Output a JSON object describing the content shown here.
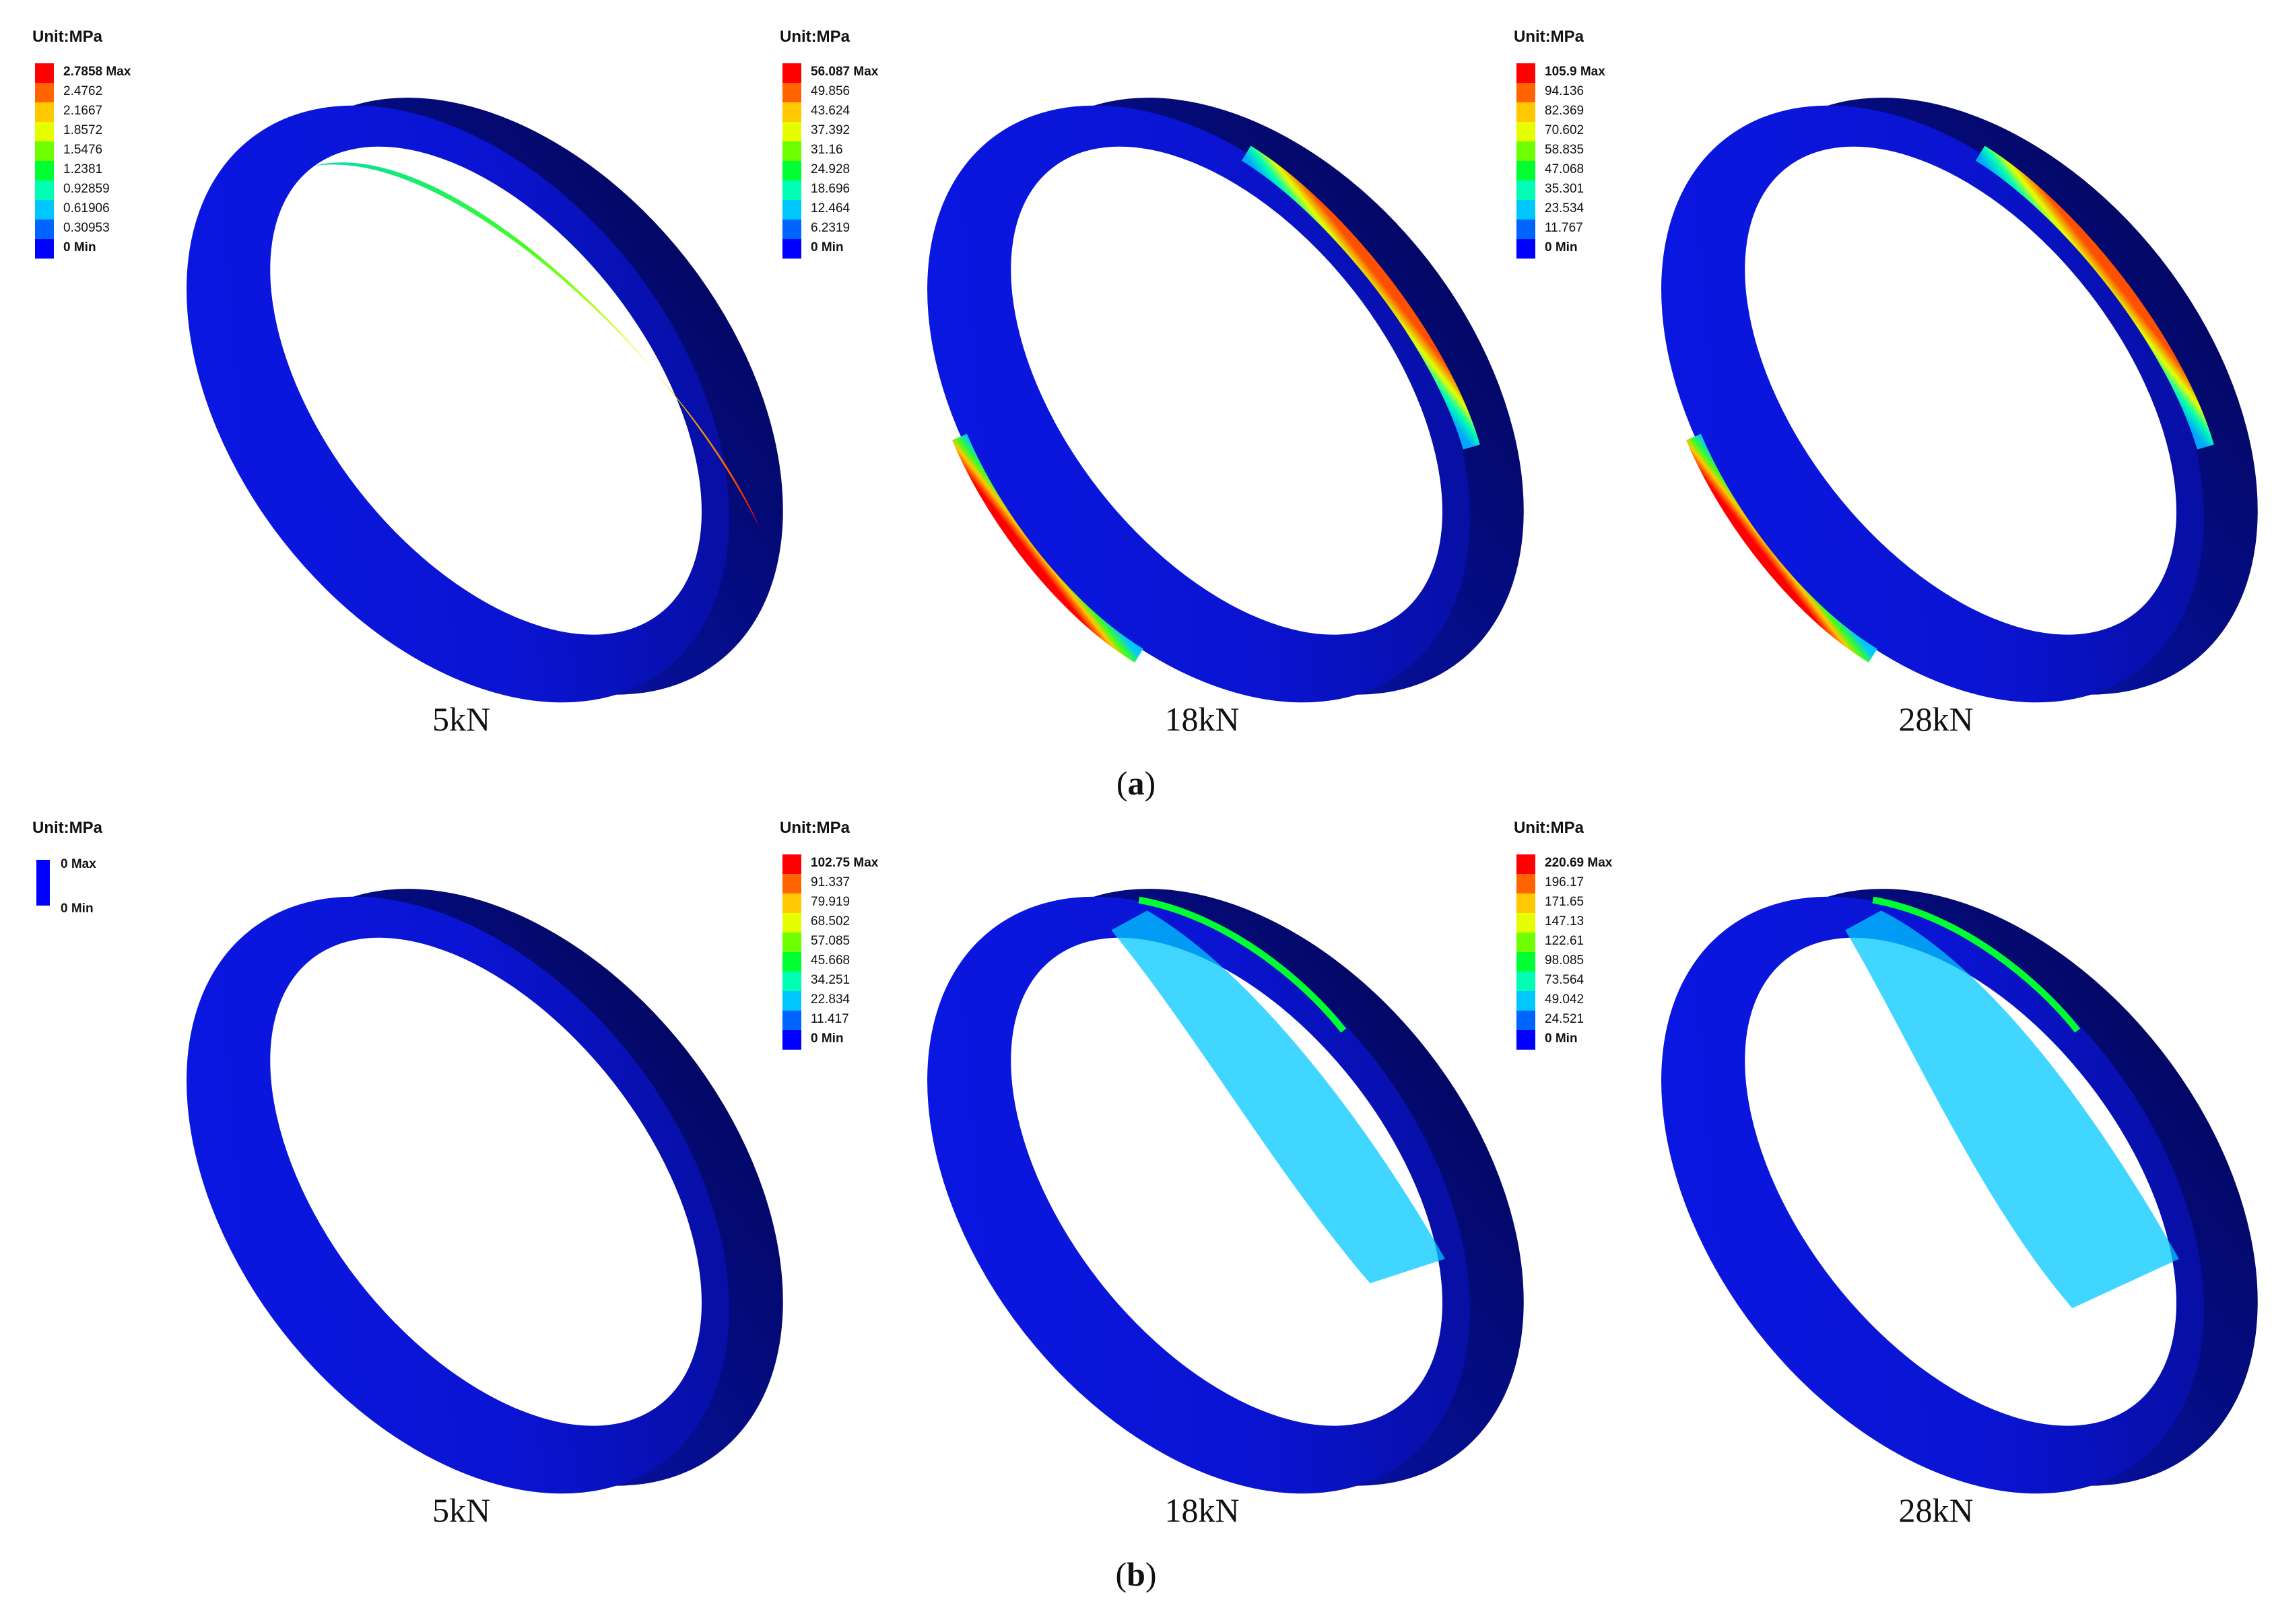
{
  "colors": {
    "ring": "#0a14dc",
    "ring_dark": "#04097a",
    "contour": [
      "#0000ff",
      "#0064ff",
      "#00c8ff",
      "#00ffb4",
      "#00ff32",
      "#6eff00",
      "#e6ff00",
      "#ffc800",
      "#ff6400",
      "#ff0000"
    ]
  },
  "panels": [
    {
      "id": "a",
      "caption_letter": "a",
      "cases": [
        {
          "load": "5kN",
          "unit": "Unit:MPa",
          "legend": [
            "2.7858 Max",
            "2.4762",
            "2.1667",
            "1.8572",
            "1.5476",
            "1.2381",
            "0.92859",
            "0.61906",
            "0.30953",
            "0 Min"
          ],
          "max_value": 2.7858
        },
        {
          "load": "18kN",
          "unit": "Unit:MPa",
          "legend": [
            "56.087 Max",
            "49.856",
            "43.624",
            "37.392",
            "31.16",
            "24.928",
            "18.696",
            "12.464",
            "6.2319",
            "0 Min"
          ],
          "max_value": 56.087
        },
        {
          "load": "28kN",
          "unit": "Unit:MPa",
          "legend": [
            "105.9 Max",
            "94.136",
            "82.369",
            "70.602",
            "58.835",
            "47.068",
            "35.301",
            "23.534",
            "11.767",
            "0 Min"
          ],
          "max_value": 105.9
        }
      ]
    },
    {
      "id": "b",
      "caption_letter": "b",
      "cases": [
        {
          "load": "5kN",
          "unit": "Unit:MPa",
          "legend": [
            "0 Max",
            "0 Min"
          ],
          "max_value": 0
        },
        {
          "load": "18kN",
          "unit": "Unit:MPa",
          "legend": [
            "102.75 Max",
            "91.337",
            "79.919",
            "68.502",
            "57.085",
            "45.668",
            "34.251",
            "22.834",
            "11.417",
            "0 Min"
          ],
          "max_value": 102.75
        },
        {
          "load": "28kN",
          "unit": "Unit:MPa",
          "legend": [
            "220.69 Max",
            "196.17",
            "171.65",
            "147.13",
            "122.61",
            "98.085",
            "73.564",
            "49.042",
            "24.521",
            "0 Min"
          ],
          "max_value": 220.69
        }
      ]
    }
  ]
}
